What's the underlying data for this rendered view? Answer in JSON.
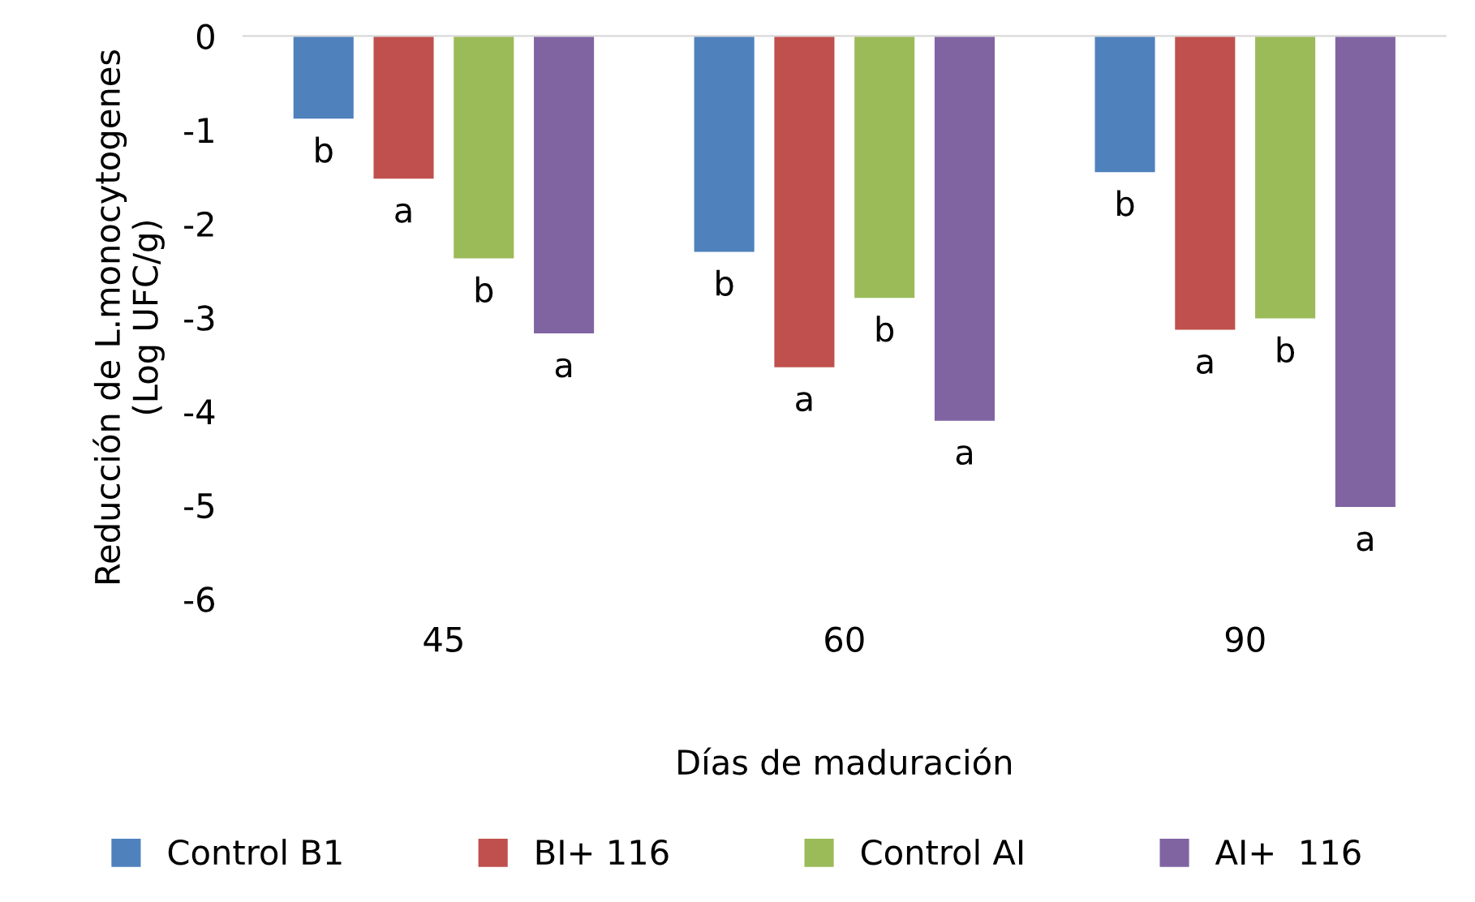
{
  "chart_data": {
    "type": "bar",
    "xlabel": "Días de maduración",
    "ylabel": "Reducción de L.monocytogenes\n(Log UFC/g)",
    "categories": [
      "45",
      "60",
      "90"
    ],
    "series": [
      {
        "name": "Control B1",
        "color": "#4f81bd",
        "values": [
          -0.88,
          -2.3,
          -1.45
        ],
        "value_labels": [
          "b",
          "b",
          "b"
        ]
      },
      {
        "name": "BI+ 116",
        "color": "#c0504d",
        "values": [
          -1.52,
          -3.53,
          -3.13
        ],
        "value_labels": [
          "a",
          "a",
          "a"
        ]
      },
      {
        "name": "Control AI",
        "color": "#9bbb59",
        "values": [
          -2.37,
          -2.79,
          -3.01
        ],
        "value_labels": [
          "b",
          "b",
          "b"
        ]
      },
      {
        "name": "AI+  116",
        "color": "#8064a2",
        "values": [
          -3.17,
          -4.1,
          -5.02
        ],
        "value_labels": [
          "a",
          "a",
          "a"
        ]
      }
    ],
    "ylim": [
      -6,
      0
    ],
    "yticks": [
      -6,
      -5,
      -4,
      -3,
      -2,
      -1,
      0
    ],
    "grid": false,
    "legend": "bottom"
  }
}
